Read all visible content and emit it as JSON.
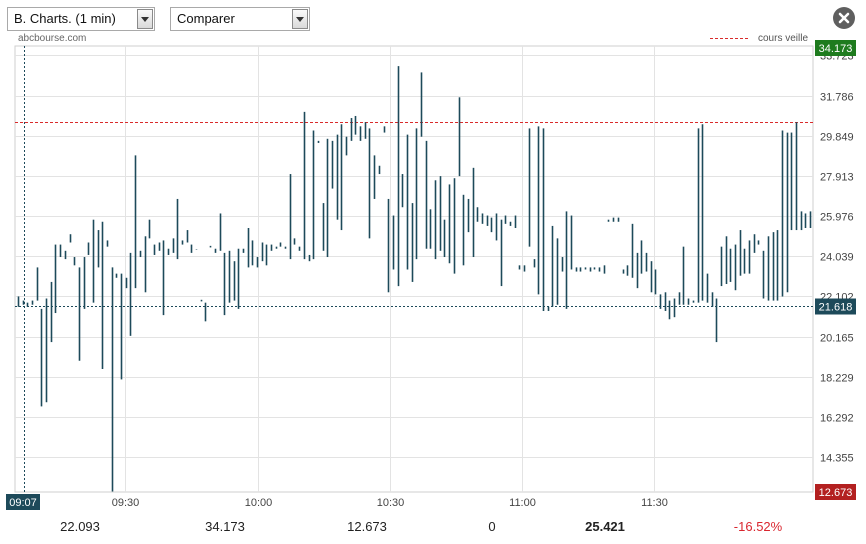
{
  "controls": {
    "chart_select": "B. Charts. (1 min)",
    "compare_select": "Comparer"
  },
  "source_label": "abcbourse.com",
  "legend": {
    "reference_line_label": "cours veille"
  },
  "colors": {
    "series": "#1d4a5a",
    "previous_close": "#d92b2b",
    "high": "#1e7b1e",
    "low": "#b32020",
    "current": "#1d4a5a"
  },
  "chart_data": {
    "type": "bar",
    "style": "high-low ticks",
    "grid": true,
    "y_axis": {
      "position": "right",
      "ylim": [
        12.673,
        34.173
      ],
      "ticks": [
        "14.355",
        "16.292",
        "18.229",
        "20.165",
        "22.102",
        "24.039",
        "25.976",
        "27.913",
        "29.849",
        "31.786",
        "33.723"
      ]
    },
    "x_axis": {
      "range": [
        "09:07",
        "12:06"
      ],
      "ticks": [
        "09:30",
        "10:00",
        "10:30",
        "11:00",
        "11:30"
      ]
    },
    "reference_line": {
      "label": "cours veille",
      "value": 30.5
    },
    "current_value": {
      "label": "21.618",
      "value": 21.618
    },
    "high_marker": "34.173",
    "low_marker": "12.673",
    "cursor_time": "09:07",
    "bars": [
      [
        22.1,
        21.6
      ],
      [
        21.9,
        21.7
      ],
      [
        21.8,
        21.6
      ],
      [
        21.9,
        21.7
      ],
      [
        23.5,
        21.9
      ],
      [
        21.5,
        16.8
      ],
      [
        22.0,
        17.0
      ],
      [
        22.8,
        19.9
      ],
      [
        24.6,
        21.3
      ],
      [
        24.6,
        24.0
      ],
      [
        24.3,
        23.9
      ],
      [
        25.1,
        24.7
      ],
      [
        24.0,
        23.6
      ],
      [
        23.5,
        19.0
      ],
      [
        24.0,
        21.5
      ],
      [
        24.7,
        24.1
      ],
      [
        25.8,
        21.8
      ],
      [
        25.3,
        23.5
      ],
      [
        25.7,
        18.6
      ],
      [
        24.8,
        24.5
      ],
      [
        23.5,
        12.7
      ],
      [
        23.2,
        23.0
      ],
      [
        23.2,
        18.1
      ],
      [
        23.0,
        22.5
      ],
      [
        24.2,
        20.2
      ],
      [
        28.9,
        22.5
      ],
      [
        24.3,
        24.0
      ],
      [
        25.0,
        22.3
      ],
      [
        25.8,
        24.9
      ],
      [
        24.6,
        24.1
      ],
      [
        24.7,
        24.3
      ],
      [
        24.8,
        21.2
      ],
      [
        24.4,
        24.1
      ],
      [
        24.9,
        24.2
      ],
      [
        26.8,
        23.9
      ],
      [
        24.8,
        24.6
      ],
      [
        25.3,
        24.7
      ],
      [
        24.6,
        24.2
      ],
      [
        24.3,
        24.4
      ],
      [
        21.9,
        21.9
      ],
      [
        21.8,
        20.9
      ],
      [
        24.5,
        24.5
      ],
      [
        24.4,
        24.2
      ],
      [
        26.1,
        24.3
      ],
      [
        24.2,
        21.2
      ],
      [
        24.3,
        21.8
      ],
      [
        23.8,
        21.9
      ],
      [
        24.4,
        21.5
      ],
      [
        24.4,
        24.2
      ],
      [
        25.4,
        23.5
      ],
      [
        24.8,
        23.6
      ],
      [
        24.0,
        23.5
      ],
      [
        24.7,
        23.8
      ],
      [
        24.6,
        23.6
      ],
      [
        24.6,
        24.3
      ],
      [
        24.5,
        24.4
      ],
      [
        24.7,
        24.5
      ],
      [
        24.5,
        24.4
      ],
      [
        28.0,
        23.9
      ],
      [
        24.9,
        24.6
      ],
      [
        24.5,
        24.3
      ],
      [
        31.0,
        23.9
      ],
      [
        24.1,
        23.8
      ],
      [
        30.1,
        23.9
      ],
      [
        29.6,
        29.5
      ],
      [
        26.6,
        24.3
      ],
      [
        29.7,
        24.0
      ],
      [
        29.6,
        27.3
      ],
      [
        29.9,
        25.8
      ],
      [
        30.4,
        25.3
      ],
      [
        29.8,
        28.9
      ],
      [
        30.7,
        29.6
      ],
      [
        30.8,
        29.9
      ],
      [
        30.3,
        29.6
      ],
      [
        30.5,
        29.7
      ],
      [
        30.2,
        24.9
      ],
      [
        28.9,
        26.8
      ],
      [
        28.4,
        28.0
      ],
      [
        30.3,
        30.0
      ],
      [
        26.8,
        22.3
      ],
      [
        26.0,
        23.4
      ],
      [
        33.2,
        22.6
      ],
      [
        28.0,
        26.4
      ],
      [
        29.9,
        23.4
      ],
      [
        26.6,
        22.8
      ],
      [
        30.2,
        23.9
      ],
      [
        32.9,
        29.8
      ],
      [
        29.6,
        24.4
      ],
      [
        26.3,
        24.4
      ],
      [
        27.7,
        23.9
      ],
      [
        27.9,
        24.3
      ],
      [
        25.8,
        24.0
      ],
      [
        27.5,
        23.7
      ],
      [
        27.8,
        23.2
      ],
      [
        31.7,
        27.9
      ],
      [
        27.0,
        23.6
      ],
      [
        26.8,
        25.2
      ],
      [
        28.3,
        24.0
      ],
      [
        26.4,
        25.7
      ],
      [
        26.1,
        25.6
      ],
      [
        26.0,
        25.5
      ],
      [
        25.9,
        25.2
      ],
      [
        26.1,
        24.8
      ],
      [
        25.8,
        22.6
      ],
      [
        26.0,
        25.6
      ],
      [
        25.7,
        25.5
      ],
      [
        26.0,
        25.4
      ],
      [
        23.6,
        23.4
      ],
      [
        23.6,
        23.3
      ],
      [
        30.2,
        24.5
      ],
      [
        23.9,
        23.5
      ],
      [
        30.3,
        22.2
      ],
      [
        30.2,
        21.4
      ],
      [
        21.6,
        21.4
      ],
      [
        25.5,
        21.6
      ],
      [
        24.9,
        21.7
      ],
      [
        24.0,
        23.3
      ],
      [
        26.2,
        21.5
      ],
      [
        26.0,
        23.4
      ],
      [
        23.5,
        23.3
      ],
      [
        23.5,
        23.3
      ],
      [
        23.5,
        23.4
      ],
      [
        23.5,
        23.3
      ],
      [
        23.5,
        23.4
      ],
      [
        23.5,
        23.3
      ],
      [
        23.6,
        23.2
      ],
      [
        25.8,
        25.7
      ],
      [
        25.9,
        25.7
      ],
      [
        25.9,
        25.7
      ],
      [
        23.4,
        23.2
      ],
      [
        23.6,
        23.1
      ],
      [
        25.6,
        23.0
      ],
      [
        24.2,
        22.5
      ],
      [
        24.8,
        23.2
      ],
      [
        24.2,
        23.3
      ],
      [
        23.8,
        22.3
      ],
      [
        23.4,
        22.2
      ],
      [
        22.2,
        21.5
      ],
      [
        22.3,
        21.4
      ],
      [
        21.9,
        21.0
      ],
      [
        22.0,
        21.1
      ],
      [
        22.3,
        21.7
      ],
      [
        24.5,
        21.7
      ],
      [
        22.0,
        21.7
      ],
      [
        21.9,
        21.8
      ],
      [
        30.2,
        21.8
      ],
      [
        30.4,
        21.9
      ],
      [
        23.2,
        21.8
      ],
      [
        22.3,
        21.6
      ],
      [
        22.0,
        19.9
      ],
      [
        24.5,
        22.6
      ],
      [
        25.0,
        22.7
      ],
      [
        24.4,
        22.8
      ],
      [
        24.6,
        22.4
      ],
      [
        25.3,
        23.1
      ],
      [
        24.4,
        23.2
      ],
      [
        24.8,
        23.2
      ],
      [
        25.1,
        24.2
      ],
      [
        24.8,
        24.6
      ],
      [
        24.3,
        22.0
      ],
      [
        25.0,
        21.9
      ],
      [
        25.2,
        21.9
      ],
      [
        25.3,
        21.9
      ],
      [
        30.1,
        22.1
      ],
      [
        30.0,
        22.3
      ],
      [
        30.0,
        25.3
      ],
      [
        30.5,
        25.3
      ],
      [
        26.2,
        25.3
      ],
      [
        26.1,
        25.4
      ],
      [
        26.2,
        25.4
      ]
    ],
    "summary": [
      {
        "label": "",
        "value": "22.093"
      },
      {
        "label": "",
        "value": "34.173"
      },
      {
        "label": "",
        "value": "12.673"
      },
      {
        "label": "",
        "value": "0"
      },
      {
        "label": "",
        "value": "25.421"
      },
      {
        "label": "",
        "value": "-16.52%"
      }
    ]
  }
}
